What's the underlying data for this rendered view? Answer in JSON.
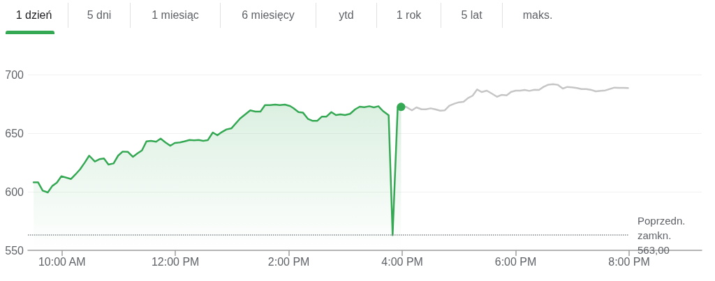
{
  "chart_data": {
    "type": "line",
    "annotations": [
      "1 dzień",
      "5 dni",
      "1 miesiąc",
      "6 miesięcy",
      "ytd",
      "1 rok",
      "5 lat",
      "maks."
    ],
    "xlim": [
      9.4,
      21.28
    ],
    "xticks": [
      {
        "value": 10,
        "label": "10:00 AM"
      },
      {
        "value": 12,
        "label": "12:00 PM"
      },
      {
        "value": 14,
        "label": "2:00 PM"
      },
      {
        "value": 16,
        "label": "4:00 PM"
      },
      {
        "value": 18,
        "label": "6:00 PM"
      },
      {
        "value": 20,
        "label": "8:00 PM"
      }
    ],
    "ylim": [
      550,
      700
    ],
    "yticks": [
      550,
      600,
      650,
      700
    ],
    "grid": "y",
    "marker": "none",
    "ref_lines": [
      {
        "axis": "y",
        "value": 563,
        "label": "Poprzedn. zamkn. 563,00",
        "color": "#80868b",
        "line_style": "dotted"
      }
    ],
    "series": [
      {
        "type": "area",
        "color": "#34a853",
        "x": [
          9.5,
          9.58,
          9.66,
          9.75,
          9.83,
          9.91,
          9.99,
          10.16,
          10.24,
          10.32,
          10.4,
          10.48,
          10.58,
          10.66,
          10.74,
          10.82,
          10.91,
          10.99,
          11.07,
          11.16,
          11.25,
          11.33,
          11.41,
          11.49,
          11.57,
          11.66,
          11.74,
          11.82,
          11.91,
          11.99,
          12.08,
          12.16,
          12.25,
          12.33,
          12.41,
          12.49,
          12.57,
          12.66,
          12.74,
          12.82,
          12.9,
          12.99,
          13.14,
          13.32,
          13.41,
          13.5,
          13.58,
          13.67,
          13.76,
          13.84,
          13.93,
          14.02,
          14.08,
          14.17,
          14.25,
          14.34,
          14.42,
          14.5,
          14.58,
          14.66,
          14.75,
          14.83,
          14.91,
          14.99,
          15.08,
          15.17,
          15.25,
          15.33,
          15.42,
          15.5,
          15.58,
          15.66,
          15.76,
          15.83,
          15.92,
          15.98
        ],
        "values": [
          608,
          608,
          601,
          599.4,
          605,
          607.7,
          613.3,
          610.9,
          614.9,
          619.2,
          624.8,
          630.8,
          625.8,
          627.8,
          628.4,
          623.2,
          624.2,
          630.8,
          634.3,
          634.1,
          629.8,
          632.7,
          635.3,
          643,
          643.5,
          642.7,
          645.4,
          642.3,
          639.3,
          641.7,
          642.1,
          643,
          644.2,
          643.9,
          644.2,
          643.5,
          644,
          650.6,
          648.2,
          651,
          653.2,
          654.2,
          662.5,
          669.5,
          668.5,
          668.5,
          674,
          674,
          674.4,
          674,
          674.4,
          673.2,
          671.4,
          668,
          667.5,
          662.1,
          660.5,
          660.5,
          664.1,
          664.1,
          668,
          665.5,
          666.1,
          665.5,
          666.5,
          670.4,
          672.6,
          672.2,
          673,
          672,
          673,
          668.9,
          665.3,
          563,
          672.4,
          672.4
        ]
      },
      {
        "type": "line",
        "color": "#c6c6c6",
        "x": [
          15.98,
          16.07,
          16.17,
          16.25,
          16.34,
          16.42,
          16.5,
          16.58,
          16.67,
          16.75,
          16.83,
          16.92,
          17,
          17.08,
          17.16,
          17.24,
          17.32,
          17.4,
          17.49,
          17.58,
          17.67,
          17.75,
          17.84,
          17.92,
          18,
          18.08,
          18.16,
          18.24,
          18.33,
          18.41,
          18.49,
          18.57,
          18.66,
          18.74,
          18.83,
          18.91,
          18.99,
          19.08,
          19.16,
          19.24,
          19.32,
          19.41,
          19.5,
          19.58,
          19.66,
          19.74,
          19.82,
          19.9,
          19.98
        ],
        "values": [
          672.4,
          672.4,
          669.5,
          672,
          670.4,
          670.4,
          671.2,
          670.4,
          669.2,
          669.5,
          673.4,
          675.2,
          676.4,
          676.8,
          680,
          682,
          687.3,
          685.1,
          686.3,
          683.8,
          681.1,
          682.7,
          682.3,
          685.3,
          686.3,
          686.3,
          686.9,
          686.1,
          687.1,
          686.9,
          689.5,
          691.3,
          691.8,
          691.3,
          688.1,
          689.5,
          689.1,
          688.5,
          687.7,
          687.7,
          687.1,
          685.7,
          686.1,
          686.5,
          687.7,
          688.9,
          688.7,
          688.7,
          688.5
        ]
      }
    ]
  }
}
